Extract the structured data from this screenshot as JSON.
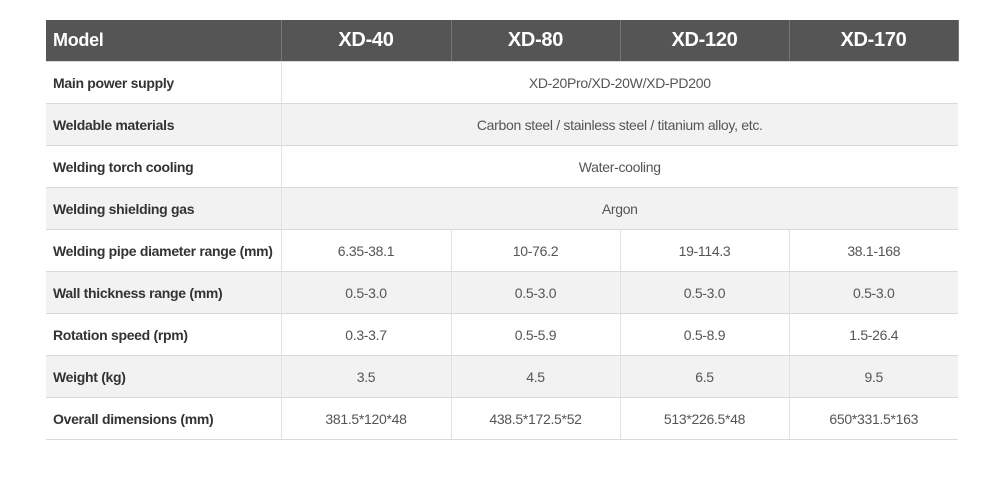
{
  "table": {
    "header": [
      "Model",
      "XD-40",
      "XD-80",
      "XD-120",
      "XD-170"
    ],
    "rows": [
      {
        "label": "Main power supply",
        "values": [
          "XD-20Pro/XD-20W/XD-PD200"
        ]
      },
      {
        "label": "Weldable materials",
        "values": [
          "Carbon steel / stainless steel / titanium alloy, etc."
        ]
      },
      {
        "label": "Welding torch cooling",
        "values": [
          "Water-cooling"
        ]
      },
      {
        "label": "Welding shielding gas",
        "values": [
          "Argon"
        ]
      },
      {
        "label": "Welding pipe diameter range (mm)",
        "values": [
          "6.35-38.1",
          "10-76.2",
          "19-114.3",
          "38.1-168"
        ]
      },
      {
        "label": "Wall thickness range (mm)",
        "values": [
          "0.5-3.0",
          "0.5-3.0",
          "0.5-3.0",
          "0.5-3.0"
        ]
      },
      {
        "label": "Rotation speed (rpm)",
        "values": [
          "0.3-3.7",
          "0.5-5.9",
          "0.5-8.9",
          "1.5-26.4"
        ]
      },
      {
        "label": "Weight (kg)",
        "values": [
          "3.5",
          "4.5",
          "6.5",
          "9.5"
        ]
      },
      {
        "label": "Overall dimensions (mm)",
        "values": [
          "381.5*120*48",
          "438.5*172.5*52",
          "513*226.5*48",
          "650*331.5*163"
        ]
      }
    ]
  }
}
